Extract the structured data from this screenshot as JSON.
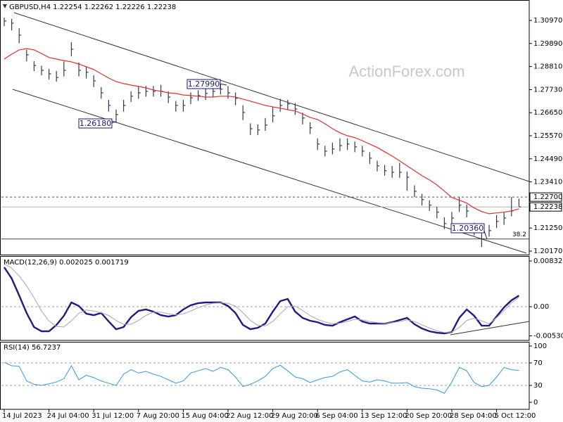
{
  "chart_data": [
    {
      "type": "ohlc",
      "title": "GBPUSD,H4  1.22254 1.22262 1.22226 1.22238",
      "watermark": "ActionForex.com",
      "categories": [
        "14 Jul 2023",
        null,
        null,
        null,
        null,
        null,
        "24 Jul 04:00",
        null,
        null,
        null,
        null,
        null,
        "31 Jul 12:00",
        null,
        null,
        null,
        null,
        null,
        "7 Aug 20:00",
        null,
        null,
        null,
        null,
        null,
        "15 Aug 04:00",
        null,
        null,
        null,
        null,
        null,
        "22 Aug 12:00",
        null,
        null,
        null,
        null,
        null,
        "29 Aug 20:00",
        null,
        null,
        null,
        null,
        null,
        "6 Sep 04:00",
        null,
        null,
        null,
        null,
        null,
        "13 Sep 12:00",
        null,
        null,
        null,
        null,
        null,
        "20 Sep 20:00",
        null,
        null,
        null,
        null,
        null,
        "28 Sep 04:00",
        null,
        null,
        null,
        null,
        null,
        "5 Oct 12:00",
        null,
        null,
        null
      ],
      "high": [
        1.311,
        1.3104,
        1.306,
        1.296,
        1.2906,
        1.2885,
        1.287,
        1.286,
        1.2905,
        1.2995,
        1.29,
        1.288,
        1.284,
        1.2785,
        1.2725,
        1.268,
        1.2725,
        1.2765,
        1.279,
        1.279,
        1.279,
        1.2795,
        1.2765,
        1.272,
        1.2725,
        1.276,
        1.277,
        1.278,
        1.279,
        1.2799,
        1.279,
        1.276,
        1.27,
        1.2615,
        1.261,
        1.264,
        1.269,
        1.273,
        1.2725,
        1.271,
        1.2665,
        1.262,
        1.2545,
        1.251,
        1.2525,
        1.2545,
        1.2545,
        1.253,
        1.251,
        1.248,
        1.244,
        1.242,
        1.2415,
        1.243,
        1.239,
        1.2325,
        1.2285,
        1.2255,
        1.2225,
        1.2175,
        1.22,
        1.227,
        1.2235,
        1.215,
        1.21,
        1.214,
        1.2185,
        1.22,
        1.227,
        1.2262
      ],
      "low": [
        1.307,
        1.305,
        1.299,
        1.2905,
        1.286,
        1.284,
        1.282,
        1.281,
        1.2835,
        1.293,
        1.2835,
        1.2825,
        1.2785,
        1.273,
        1.267,
        1.2618,
        1.267,
        1.2715,
        1.273,
        1.274,
        1.274,
        1.274,
        1.271,
        1.267,
        1.267,
        1.2705,
        1.272,
        1.2725,
        1.274,
        1.275,
        1.273,
        1.27,
        1.263,
        1.256,
        1.256,
        1.258,
        1.262,
        1.267,
        1.268,
        1.2655,
        1.261,
        1.2565,
        1.249,
        1.246,
        1.247,
        1.2485,
        1.249,
        1.248,
        1.246,
        1.2425,
        1.239,
        1.237,
        1.236,
        1.236,
        1.23,
        1.227,
        1.223,
        1.2205,
        1.217,
        1.212,
        1.214,
        1.22,
        1.2175,
        1.209,
        1.2036,
        1.2085,
        1.2125,
        1.214,
        1.218,
        1.2226
      ],
      "close": [
        1.3094,
        1.3084,
        1.3028,
        1.2936,
        1.2886,
        1.2863,
        1.2847,
        1.283,
        1.2863,
        1.2962,
        1.2863,
        1.2854,
        1.2814,
        1.2758,
        1.2699,
        1.2656,
        1.2699,
        1.2742,
        1.2758,
        1.2765,
        1.2765,
        1.2765,
        1.2738,
        1.2699,
        1.2699,
        1.2735,
        1.2745,
        1.2755,
        1.2765,
        1.2775,
        1.2758,
        1.2732,
        1.2666,
        1.259,
        1.2584,
        1.2607,
        1.265,
        1.2699,
        1.2706,
        1.2682,
        1.264,
        1.2594,
        1.2518,
        1.2485,
        1.2495,
        1.2511,
        1.2518,
        1.2505,
        1.2485,
        1.2452,
        1.2416,
        1.2393,
        1.2386,
        1.2386,
        1.2363,
        1.2297,
        1.2258,
        1.2232,
        1.2199,
        1.2146,
        1.2172,
        1.2232,
        1.2205,
        1.2124,
        1.2074,
        1.2113,
        1.2156,
        1.2172,
        1.2205,
        1.22238
      ],
      "bar_color": "#2f3e4e",
      "moving_average": {
        "color": "#e03030",
        "values": [
          1.2916,
          1.2939,
          1.2959,
          1.2965,
          1.2959,
          1.2942,
          1.2923,
          1.2916,
          1.2909,
          1.2903,
          1.2893,
          1.288,
          1.2867,
          1.2847,
          1.2827,
          1.2811,
          1.2801,
          1.2794,
          1.2788,
          1.2781,
          1.2771,
          1.2765,
          1.2758,
          1.2755,
          1.2748,
          1.2745,
          1.2742,
          1.2738,
          1.2738,
          1.2742,
          1.2742,
          1.2738,
          1.2728,
          1.2719,
          1.2709,
          1.2699,
          1.2692,
          1.2686,
          1.2679,
          1.2673,
          1.2659,
          1.2643,
          1.2633,
          1.2613,
          1.259,
          1.2571,
          1.2557,
          1.2548,
          1.2534,
          1.2518,
          1.2502,
          1.2482,
          1.2462,
          1.2439,
          1.2416,
          1.2393,
          1.237,
          1.235,
          1.2327,
          1.2298,
          1.2268,
          1.2255,
          1.2242,
          1.2219,
          1.2202,
          1.2192,
          1.2196,
          1.2199,
          1.2205,
          1.2215
        ]
      },
      "ylim": [
        1.20006,
        1.31859
      ],
      "yticks": [
        {
          "value": 1.3097,
          "label": "1.30970"
        },
        {
          "value": 1.2989,
          "label": "1.29890"
        },
        {
          "value": 1.2881,
          "label": "1.28810"
        },
        {
          "value": 1.2773,
          "label": "1.27730"
        },
        {
          "value": 1.2665,
          "label": "1.26650"
        },
        {
          "value": 1.2557,
          "label": "1.25570"
        },
        {
          "value": 1.2449,
          "label": "1.24490"
        },
        {
          "value": 1.2341,
          "label": "1.23410"
        },
        {
          "value": 1.2125,
          "label": "1.21250"
        },
        {
          "value": 1.2017,
          "label": "1.20170"
        }
      ],
      "levels": [
        {
          "value": 1.227,
          "label": "1.22700",
          "style": "dashed"
        },
        {
          "value": 1.22238,
          "label": "1.22238",
          "style": "solid"
        },
        {
          "value": 1.2074,
          "label": "38.2",
          "style": "fib"
        }
      ],
      "annotations": [
        "1.27990",
        "1.26180",
        "1.20360"
      ]
    },
    {
      "type": "line",
      "title": "MACD(12,26,9) 0.002025 0.001719",
      "series": [
        {
          "color": "#1c1c80",
          "values": [
            0.00717,
            0.00512,
            0.00205,
            -0.00115,
            -0.00371,
            -0.00448,
            -0.00448,
            -0.00333,
            -0.00166,
            0.00077,
            0.00013,
            -0.00128,
            -0.00154,
            -0.00115,
            -0.00269,
            -0.0041,
            -0.00371,
            -0.00192,
            -0.00077,
            -0.00051,
            -0.0009,
            -0.00154,
            -0.00179,
            -0.00154,
            -0.00051,
            0.00026,
            0.00064,
            0.00077,
            0.00077,
            0.00077,
            0.00013,
            -0.00115,
            -0.00333,
            -0.0041,
            -0.00384,
            -0.00307,
            -0.0009,
            0.00102,
            0.00141,
            -0.0009,
            -0.00205,
            -0.00256,
            -0.00282,
            -0.00333,
            -0.00346,
            -0.00282,
            -0.0023,
            -0.00179,
            -0.00269,
            -0.00307,
            -0.00307,
            -0.00307,
            -0.00282,
            -0.00243,
            -0.00205,
            -0.0032,
            -0.00397,
            -0.00448,
            -0.00474,
            -0.00486,
            -0.00461,
            -0.00205,
            -0.00051,
            -0.00166,
            -0.00346,
            -0.00346,
            -0.00179,
            -0.00013,
            0.00115,
            0.002025
          ]
        },
        {
          "color": "#a8a8a8",
          "values": [
            0.0078,
            0.007,
            0.0056,
            0.0038,
            0.0016,
            -0.0008,
            -0.0026,
            -0.0036,
            -0.0037,
            -0.0026,
            -0.0012,
            -0.0006,
            -0.0008,
            -0.0011,
            -0.0016,
            -0.0025,
            -0.0032,
            -0.0032,
            -0.0025,
            -0.0016,
            -0.001,
            -0.001,
            -0.0013,
            -0.0015,
            -0.0013,
            -0.0008,
            -0.0002,
            0.0003,
            0.0006,
            0.0007,
            0.0006,
            0.0001,
            -0.0011,
            -0.0025,
            -0.0034,
            -0.0035,
            -0.0027,
            -0.0013,
            0.0,
            0.0001,
            -0.0007,
            -0.0016,
            -0.0023,
            -0.0028,
            -0.0031,
            -0.003,
            -0.0027,
            -0.0023,
            -0.0024,
            -0.0027,
            -0.0029,
            -0.003,
            -0.0029,
            -0.0027,
            -0.0024,
            -0.0027,
            -0.0033,
            -0.0039,
            -0.0044,
            -0.0047,
            -0.0046,
            -0.0038,
            -0.0025,
            -0.0021,
            -0.0026,
            -0.0031,
            -0.002,
            -0.0007,
            0.0007,
            0.001719
          ]
        }
      ],
      "ylim": [
        -0.00614,
        0.00922
      ],
      "yticks": [
        {
          "value": 0.00832,
          "label": "0.00832"
        },
        {
          "value": 0,
          "label": "0.00"
        },
        {
          "value": -0.005308,
          "label": "-0.005308"
        }
      ],
      "levels": [
        0
      ]
    },
    {
      "type": "line",
      "title": "RSI(14) 56.7237",
      "series": [
        {
          "color": "#3399dd",
          "values": [
            71,
            65,
            64,
            38,
            32,
            30,
            33,
            36,
            42,
            65,
            40,
            48,
            44,
            38,
            34,
            30,
            50,
            58,
            52,
            55,
            50,
            46,
            40,
            34,
            38,
            52,
            56,
            60,
            55,
            62,
            58,
            45,
            28,
            32,
            38,
            46,
            60,
            66,
            56,
            45,
            42,
            35,
            40,
            44,
            46,
            54,
            58,
            48,
            38,
            36,
            40,
            38,
            34,
            34,
            35,
            28,
            25,
            24,
            22,
            16,
            36,
            62,
            56,
            35,
            28,
            30,
            45,
            62,
            58,
            56.7237
          ]
        }
      ],
      "ylim": [
        -12.5,
        107.5
      ],
      "yticks": [
        100,
        70,
        30,
        0
      ],
      "levels": [
        70,
        30
      ]
    }
  ]
}
